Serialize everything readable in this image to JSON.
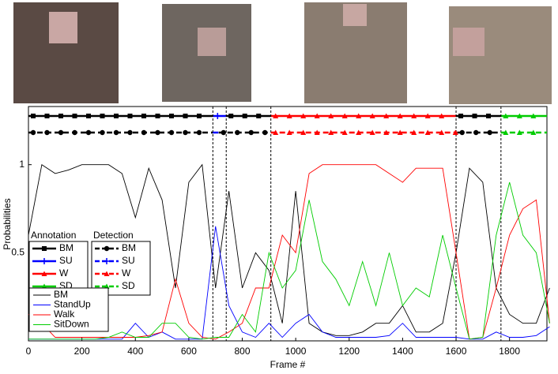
{
  "chart_data": {
    "type": "line",
    "xlabel": "Frame #",
    "ylabel": "Probabilities",
    "xlim": [
      0,
      1940
    ],
    "ylim": [
      0,
      1.33
    ],
    "xticks": [
      0,
      200,
      400,
      600,
      800,
      1000,
      1200,
      1400,
      1600,
      1800
    ],
    "yticks": [
      0.5,
      1
    ],
    "x": [
      0,
      50,
      100,
      150,
      200,
      250,
      300,
      350,
      400,
      450,
      500,
      550,
      600,
      650,
      700,
      750,
      800,
      850,
      900,
      950,
      1000,
      1050,
      1100,
      1150,
      1200,
      1250,
      1300,
      1350,
      1400,
      1450,
      1500,
      1550,
      1600,
      1650,
      1700,
      1750,
      1800,
      1850,
      1900,
      1950
    ],
    "series": [
      {
        "name": "BM",
        "color": "#000000",
        "values": [
          0.6,
          1,
          0.95,
          0.97,
          1,
          1,
          1,
          0.95,
          0.7,
          0.98,
          0.8,
          0.3,
          0.9,
          1,
          0.3,
          0.85,
          0.3,
          0.5,
          0.4,
          0.1,
          0.85,
          0.1,
          0.05,
          0.03,
          0.03,
          0.05,
          0.1,
          0.1,
          0.2,
          0.05,
          0.05,
          0.1,
          0.5,
          0.98,
          0.9,
          0.3,
          0.15,
          0.1,
          0.1,
          0.3
        ]
      },
      {
        "name": "StandUp",
        "color": "#0000ff",
        "values": [
          0.01,
          0.01,
          0.01,
          0.01,
          0.01,
          0.01,
          0.01,
          0.01,
          0.1,
          0.02,
          0.05,
          0.01,
          0.01,
          0.01,
          0.65,
          0.2,
          0.05,
          0.02,
          0.1,
          0.02,
          0.1,
          0.15,
          0.05,
          0.02,
          0.02,
          0.02,
          0.02,
          0.03,
          0.1,
          0.02,
          0.02,
          0.02,
          0.02,
          0.01,
          0.01,
          0.05,
          0.02,
          0.02,
          0.03,
          0.08
        ]
      },
      {
        "name": "Walk",
        "color": "#ff0000",
        "values": [
          0.15,
          0.1,
          0.02,
          0.02,
          0.02,
          0.02,
          0.02,
          0.02,
          0.02,
          0.03,
          0.05,
          0.35,
          0.1,
          0.02,
          0.01,
          0.05,
          0.1,
          0.3,
          0.3,
          0.6,
          0.5,
          0.95,
          1,
          1,
          1,
          1,
          1,
          0.95,
          0.9,
          0.98,
          0.98,
          0.98,
          0.5,
          0.01,
          0.02,
          0.3,
          0.6,
          0.75,
          0.8,
          0.1
        ]
      },
      {
        "name": "SitDown",
        "color": "#00cc00",
        "values": [
          0.01,
          0.01,
          0.01,
          0.01,
          0.01,
          0.01,
          0.02,
          0.05,
          0.02,
          0.02,
          0.1,
          0.1,
          0.02,
          0.01,
          0.02,
          0.02,
          0.15,
          0.05,
          0.5,
          0.3,
          0.4,
          0.8,
          0.45,
          0.35,
          0.2,
          0.45,
          0.2,
          0.5,
          0.2,
          0.3,
          0.25,
          0.6,
          0.3,
          0.01,
          0.02,
          0.6,
          0.9,
          0.6,
          0.5,
          0.1
        ]
      }
    ],
    "annotation": {
      "title": "Annotation",
      "dashed": false,
      "classes": [
        {
          "name": "BM",
          "color": "#000000",
          "marker": "square"
        },
        {
          "name": "SU",
          "color": "#0000ff",
          "marker": "plus"
        },
        {
          "name": "W",
          "color": "#ff0000",
          "marker": "triangle"
        },
        {
          "name": "SD",
          "color": "#00cc00",
          "marker": "triangle"
        }
      ],
      "segments": [
        {
          "class": "BM",
          "start": 0,
          "end": 690
        },
        {
          "class": "SU",
          "start": 690,
          "end": 740
        },
        {
          "class": "BM",
          "start": 740,
          "end": 907
        },
        {
          "class": "W",
          "start": 907,
          "end": 1600
        },
        {
          "class": "BM",
          "start": 1600,
          "end": 1768
        },
        {
          "class": "SD",
          "start": 1768,
          "end": 1940
        }
      ]
    },
    "detection": {
      "title": "Detection",
      "dashed": true,
      "classes": [
        {
          "name": "BM",
          "color": "#000000",
          "marker": "circle"
        },
        {
          "name": "SU",
          "color": "#0000ff",
          "marker": "plus"
        },
        {
          "name": "W",
          "color": "#ff0000",
          "marker": "triangle"
        },
        {
          "name": "SD",
          "color": "#00cc00",
          "marker": "triangle"
        }
      ],
      "segments": [
        {
          "class": "BM",
          "start": 0,
          "end": 690
        },
        {
          "class": "SU",
          "start": 690,
          "end": 712
        },
        {
          "class": "BM",
          "start": 712,
          "end": 907
        },
        {
          "class": "W",
          "start": 907,
          "end": 1605
        },
        {
          "class": "BM",
          "start": 1605,
          "end": 1768
        },
        {
          "class": "SD",
          "start": 1768,
          "end": 1940
        }
      ]
    }
  }
}
